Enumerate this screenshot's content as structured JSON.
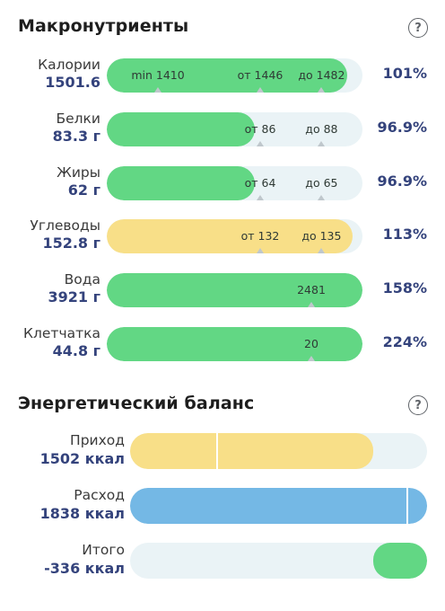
{
  "macro": {
    "title": "Макронутриенты",
    "help_icon": "question-circle-icon",
    "rows": [
      {
        "name": "Калории",
        "value": "1501.6",
        "percent": "101%",
        "color": "#62d784",
        "fill": 0.94,
        "markers": [
          {
            "text": "min 1410",
            "pos": 0.2
          },
          {
            "text": "от 1446",
            "pos": 0.6
          },
          {
            "text": "до 1482",
            "pos": 0.84
          }
        ]
      },
      {
        "name": "Белки",
        "value": "83.3 г",
        "percent": "96.9%",
        "color": "#62d784",
        "fill": 0.58,
        "markers": [
          {
            "text": "от 86",
            "pos": 0.6
          },
          {
            "text": "до 88",
            "pos": 0.84
          }
        ]
      },
      {
        "name": "Жиры",
        "value": "62 г",
        "percent": "96.9%",
        "color": "#62d784",
        "fill": 0.58,
        "markers": [
          {
            "text": "от 64",
            "pos": 0.6
          },
          {
            "text": "до 65",
            "pos": 0.84
          }
        ]
      },
      {
        "name": "Углеводы",
        "value": "152.8 г",
        "percent": "113%",
        "color": "#f8df88",
        "fill": 0.96,
        "markers": [
          {
            "text": "от 132",
            "pos": 0.6
          },
          {
            "text": "до 135",
            "pos": 0.84
          }
        ]
      },
      {
        "name": "Вода",
        "value": "3921 г",
        "percent": "158%",
        "color": "#62d784",
        "fill": 1.0,
        "markers": [
          {
            "text": "2481",
            "pos": 0.8
          }
        ]
      },
      {
        "name": "Клетчатка",
        "value": "44.8 г",
        "percent": "224%",
        "color": "#62d784",
        "fill": 1.0,
        "markers": [
          {
            "text": "20",
            "pos": 0.8
          }
        ]
      }
    ]
  },
  "energy": {
    "title": "Энергетический баланс",
    "help_icon": "question-circle-icon",
    "rows": [
      {
        "name": "Приход",
        "value": "1502 ккал",
        "color": "#f8df88",
        "fill": 0.82,
        "divider": 0.29
      },
      {
        "name": "Расход",
        "value": "1838 ккал",
        "color": "#74b8e5",
        "fill": 1.0,
        "divider": 0.93
      },
      {
        "name": "Итого",
        "value": "-336 ккал",
        "color": "#62d784",
        "fill": 0.18,
        "align": "right"
      }
    ]
  }
}
